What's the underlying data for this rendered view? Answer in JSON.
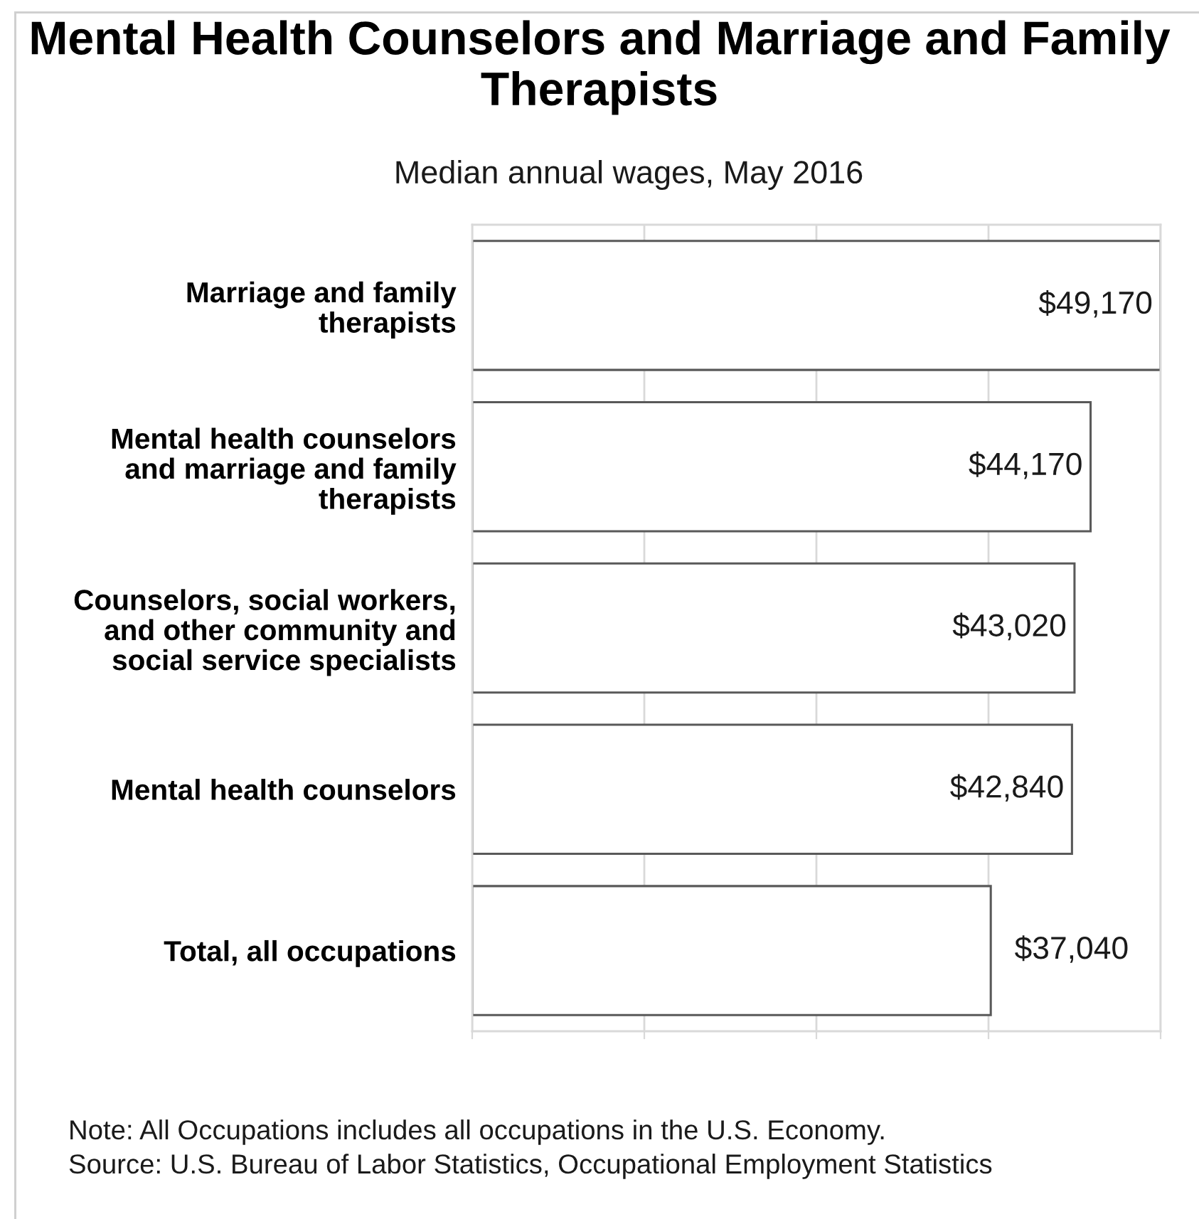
{
  "chart_data": {
    "type": "bar",
    "orientation": "horizontal",
    "title": "Mental Health Counselors and Marriage and Family Therapists",
    "subtitle": "Median annual wages, May 2016",
    "categories": [
      "Marriage and family therapists",
      "Mental health counselors and marriage and family therapists",
      "Counselors, social workers, and other community and social service specialists",
      "Mental health counselors",
      "Total, all occupations"
    ],
    "values": [
      49170,
      44170,
      43020,
      42840,
      37040
    ],
    "value_labels": [
      "$49,170",
      "$44,170",
      "$43,020",
      "$42,840",
      "$37,040"
    ],
    "color": "#ffffff",
    "xlim": [
      0,
      49170
    ],
    "xticks": [
      {
        "value": 0,
        "label": null
      },
      {
        "value": 12292.5,
        "label": null
      },
      {
        "value": 24585,
        "label": null
      },
      {
        "value": 36877.5,
        "label": null
      },
      {
        "value": 49170,
        "label": null
      }
    ],
    "tick_labels": "y",
    "grid": "x",
    "annotations": [
      "Note: All Occupations includes all occupations in the U.S. Economy.",
      "Source: U.S. Bureau of Labor Statistics, Occupational Employment Statistics"
    ]
  }
}
